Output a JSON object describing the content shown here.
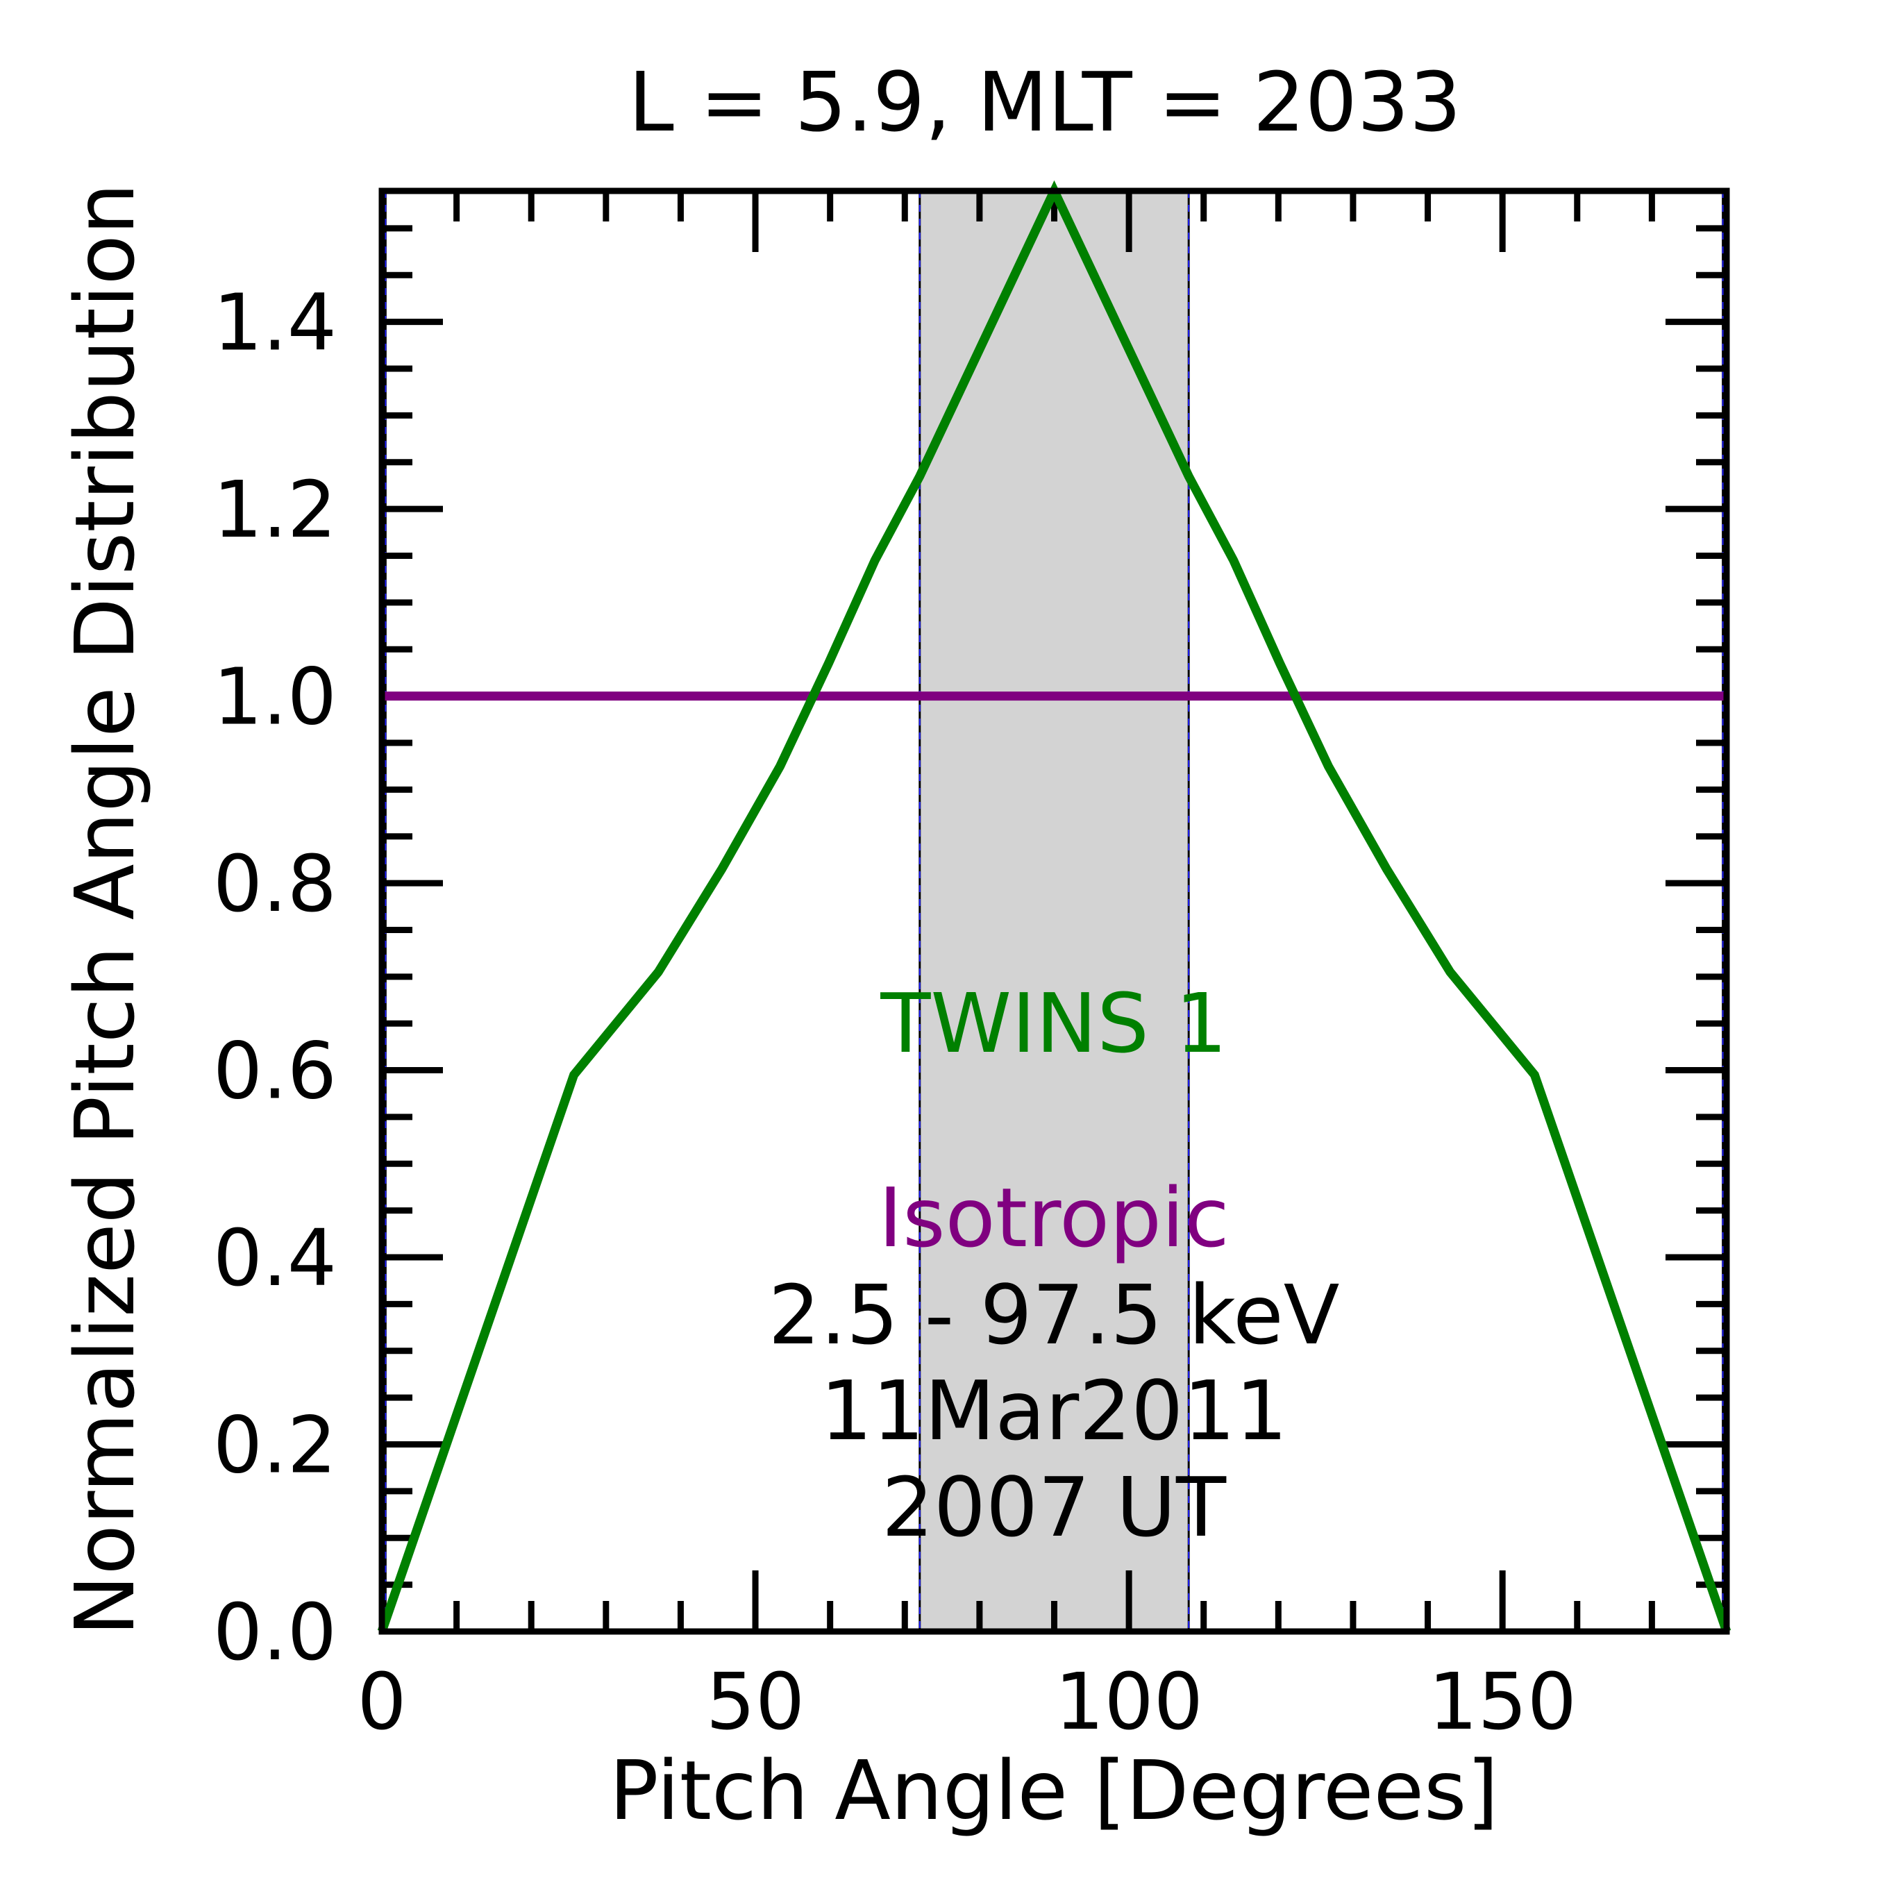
{
  "chart_data": {
    "type": "line",
    "title": "L =  5.9, MLT = 2033",
    "xlabel": "Pitch Angle [Degrees]",
    "ylabel": "Normalized Pitch Angle Distribution",
    "xlim": [
      0,
      180
    ],
    "ylim": [
      0,
      1.54
    ],
    "x_ticks": [
      0,
      50,
      100,
      150
    ],
    "y_ticks": [
      0.0,
      0.2,
      0.4,
      0.6,
      0.8,
      1.0,
      1.2,
      1.4
    ],
    "x_tick_labels": [
      "0",
      "50",
      "100",
      "150"
    ],
    "y_tick_labels": [
      "0.0",
      "0.2",
      "0.4",
      "0.6",
      "0.8",
      "1.0",
      "1.2",
      "1.4"
    ],
    "grid": false,
    "shaded_band": {
      "x_range": [
        72,
        108
      ],
      "color": "#d3d3d3"
    },
    "boundary_lines": [
      0.5,
      72,
      108,
      179.5
    ],
    "series": [
      {
        "name": "TWINS 1",
        "color": "#008000",
        "x": [
          0,
          25.7,
          37.0,
          45.5,
          53.3,
          59.8,
          66.0,
          72.0,
          90.0,
          108.0,
          114.0,
          120.2,
          126.7,
          134.5,
          143.0,
          154.3,
          180
        ],
        "y": [
          0.0,
          0.595,
          0.705,
          0.815,
          0.925,
          1.035,
          1.145,
          1.235,
          1.54,
          1.235,
          1.145,
          1.035,
          0.925,
          0.815,
          0.705,
          0.595,
          0.0
        ]
      },
      {
        "name": "Isotropic",
        "color": "#800080",
        "x": [
          0,
          180
        ],
        "y": [
          1.0,
          1.0
        ]
      }
    ],
    "annotations": {
      "twins_label": "TWINS 1",
      "isotropic_label": "Isotropic",
      "energy": "2.5 - 97.5 keV",
      "date": "11Mar2011",
      "time": "2007 UT"
    }
  }
}
